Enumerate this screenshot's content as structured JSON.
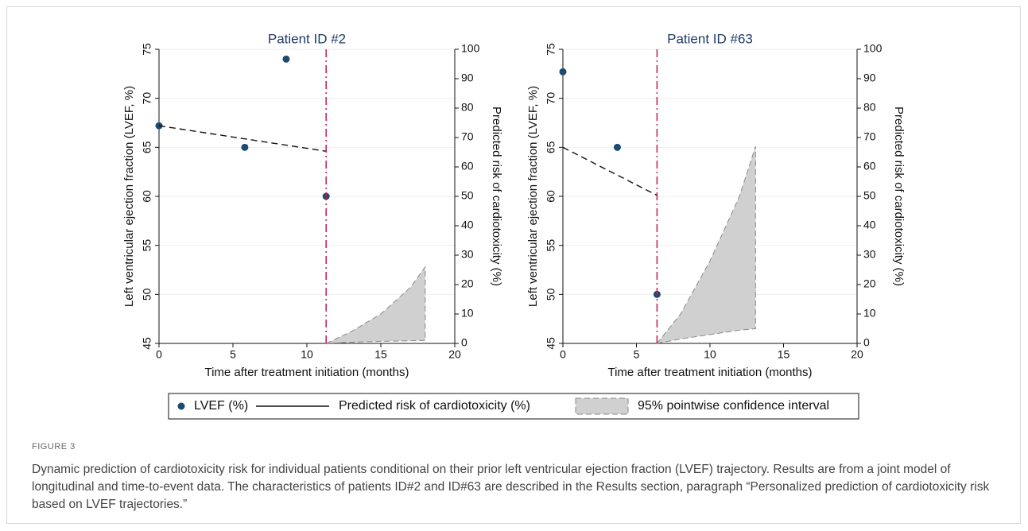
{
  "figure": {
    "label": "FIGURE 3",
    "caption": "Dynamic prediction of cardiotoxicity risk for individual patients conditional on their prior left ventricular ejection fraction (LVEF) trajectory. Results are from a joint model of longitudinal and time-to-event data. The characteristics of patients ID#2 and ID#63 are described in the Results section, paragraph “Personalized prediction of cardiotoxicity risk based on LVEF trajectories.”"
  },
  "chart_data": [
    {
      "type": "line",
      "title": "Patient ID #2",
      "xlabel": "Time after treatment initiation (months)",
      "ylabel": "Left ventricular ejection fraction (LVEF, %)",
      "y2label": "Predicted risk of cardiotoxicity (%)",
      "xlim": [
        0,
        20
      ],
      "xticks": [
        0,
        5,
        10,
        15,
        20
      ],
      "ylim": [
        45,
        75
      ],
      "yticks": [
        45,
        50,
        55,
        60,
        65,
        70,
        75
      ],
      "y2lim": [
        0,
        100
      ],
      "y2ticks": [
        0,
        10,
        20,
        30,
        40,
        50,
        60,
        70,
        80,
        90,
        100
      ],
      "grid": true,
      "vline": 11.3,
      "vline_color": "#c8174a",
      "series": [
        {
          "name": "LVEF (%)",
          "kind": "scatter",
          "color": "#1b4a72",
          "x": [
            0,
            5.8,
            8.6,
            11.3
          ],
          "values": [
            67.2,
            65,
            74,
            60
          ]
        },
        {
          "kind": "dashed",
          "color": "#111111",
          "x": [
            0,
            11.3
          ],
          "values": [
            67.2,
            64.6
          ]
        },
        {
          "name": "Predicted risk of cardiotoxicity (%)",
          "kind": "line",
          "axis": "y2",
          "color": "#111111",
          "x": [
            11.3,
            13,
            15,
            17,
            18
          ],
          "values": [
            0,
            1.3,
            2.7,
            4.2,
            5.2
          ]
        },
        {
          "name": "95% pointwise confidence interval",
          "kind": "band",
          "axis": "y2",
          "color": "#d0d0d0",
          "x": [
            11.3,
            13,
            15,
            17,
            18
          ],
          "upper": [
            0,
            4,
            10,
            19,
            26
          ],
          "lower": [
            0,
            0.4,
            0.7,
            0.9,
            1
          ]
        }
      ]
    },
    {
      "type": "line",
      "title": "Patient ID #63",
      "xlabel": "Time after treatment initiation (months)",
      "ylabel": "Left ventricular ejection fraction (LVEF, %)",
      "y2label": "Predicted risk of cardiotoxicity (%)",
      "xlim": [
        0,
        20
      ],
      "xticks": [
        0,
        5,
        10,
        15,
        20
      ],
      "ylim": [
        45,
        75
      ],
      "yticks": [
        45,
        50,
        55,
        60,
        65,
        70,
        75
      ],
      "y2lim": [
        0,
        100
      ],
      "y2ticks": [
        0,
        10,
        20,
        30,
        40,
        50,
        60,
        70,
        80,
        90,
        100
      ],
      "grid": true,
      "vline": 6.4,
      "vline_color": "#c8174a",
      "series": [
        {
          "kind": "scatter",
          "color": "#1b4a72",
          "x": [
            0,
            3.7,
            6.4
          ],
          "values": [
            72.7,
            65,
            50
          ]
        },
        {
          "kind": "dashed",
          "color": "#111111",
          "x": [
            0,
            6.4
          ],
          "values": [
            65,
            60.1
          ]
        },
        {
          "kind": "line",
          "axis": "y2",
          "color": "#111111",
          "x": [
            6.4,
            8,
            10,
            12,
            13.1
          ],
          "values": [
            0,
            2.5,
            7,
            13,
            18
          ]
        },
        {
          "kind": "band",
          "axis": "y2",
          "color": "#d0d0d0",
          "x": [
            6.4,
            8,
            10,
            12,
            13.1
          ],
          "upper": [
            0,
            10,
            28,
            50,
            67
          ],
          "lower": [
            0,
            1.5,
            3,
            4.5,
            5
          ]
        }
      ]
    }
  ]
}
